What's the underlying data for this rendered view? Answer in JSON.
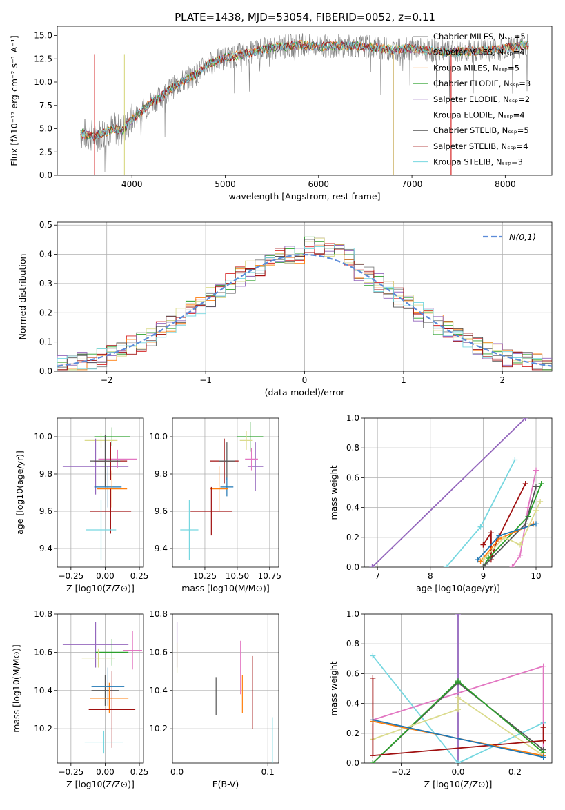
{
  "figure_title": "PLATE=1438, MJD=53054, FIBERID=0052, z=0.11",
  "legend_models": [
    {
      "name": "Chabrier MILES, N$_{SSP}$=5",
      "color": "#7f7f7f"
    },
    {
      "name": "Salpeter MILES, N$_{SSP}$=4",
      "color": "#d62728"
    },
    {
      "name": "Kroupa MILES, N$_{SSP}$=5",
      "color": "#ff7f0e"
    },
    {
      "name": "Chabrier ELODIE, N$_{SSP}$=3",
      "color": "#2ca02c"
    },
    {
      "name": "Salpeter ELODIE, N$_{SSP}$=2",
      "color": "#9467bd"
    },
    {
      "name": "Kroupa ELODIE, N$_{SSP}$=4",
      "color": "#dbdb8d"
    },
    {
      "name": "Chabrier STELIB, N$_{SSP}$=5",
      "color": "#555555"
    },
    {
      "name": "Salpeter STELIB, N$_{SSP}$=4",
      "color": "#a01010"
    },
    {
      "name": "Kroupa STELIB, N$_{SSP}$=3",
      "color": "#76d7e0"
    }
  ],
  "chart_data": [
    {
      "id": "spectrum",
      "type": "line",
      "title": "PLATE=1438, MJD=53054, FIBERID=0052, z=0.11",
      "xlabel": "wavelength [Angstrom, rest frame]",
      "ylabel": "Flux [fλ10⁻¹⁷ erg cm⁻² s⁻¹ A⁻¹]",
      "xlim": [
        3200,
        8500
      ],
      "ylim": [
        0,
        16
      ],
      "xticks": [
        "4000",
        "5000",
        "6000",
        "7000",
        "8000"
      ],
      "yticks": [
        "0.0",
        "2.5",
        "5.0",
        "7.5",
        "10.0",
        "12.5",
        "15.0"
      ],
      "continuum": [
        [
          3450,
          4.5
        ],
        [
          3600,
          4.2
        ],
        [
          3700,
          4.6
        ],
        [
          3800,
          5.0
        ],
        [
          3900,
          4.8
        ],
        [
          4000,
          6.0
        ],
        [
          4100,
          6.8
        ],
        [
          4200,
          7.8
        ],
        [
          4300,
          8.3
        ],
        [
          4400,
          9.2
        ],
        [
          4500,
          9.8
        ],
        [
          4600,
          10.4
        ],
        [
          4700,
          10.9
        ],
        [
          4800,
          11.8
        ],
        [
          4900,
          12.3
        ],
        [
          5000,
          12.6
        ],
        [
          5200,
          13.0
        ],
        [
          5400,
          13.5
        ],
        [
          5600,
          13.8
        ],
        [
          5800,
          14.0
        ],
        [
          6000,
          13.8
        ],
        [
          6200,
          13.9
        ],
        [
          6400,
          13.9
        ],
        [
          6600,
          13.7
        ],
        [
          6800,
          13.5
        ],
        [
          7000,
          13.6
        ],
        [
          7200,
          13.4
        ],
        [
          7400,
          13.2
        ],
        [
          7600,
          13.3
        ],
        [
          7800,
          13.4
        ],
        [
          8000,
          13.6
        ],
        [
          8250,
          14.0
        ]
      ]
    },
    {
      "id": "residual_hist",
      "type": "histogram",
      "xlabel": "(data-model)/error",
      "ylabel": "Normed distribution",
      "xlim": [
        -2.5,
        2.5
      ],
      "ylim": [
        0,
        0.51
      ],
      "xticks": [
        "−2",
        "−1",
        "0",
        "1",
        "2"
      ],
      "yticks": [
        "0.0",
        "0.1",
        "0.2",
        "0.3",
        "0.4",
        "0.5"
      ],
      "legend": "N(0,1)",
      "bin_width": 0.1
    },
    {
      "id": "age_vs_Z",
      "type": "errorbar",
      "xlabel": "Z [log10(Z/Z⊙)]",
      "ylabel": "age  [log10(age/yr)]",
      "xlim": [
        -0.35,
        0.28
      ],
      "ylim": [
        9.3,
        10.1
      ],
      "xticks": [
        "−0.25",
        "0.00",
        "0.25"
      ],
      "yticks": [
        "9.4",
        "9.6",
        "9.8",
        "10.0"
      ],
      "points": [
        {
          "x": 0.05,
          "xerr": 0.13,
          "y": 10.0,
          "yerr": 0.05,
          "c": "#2ca02c"
        },
        {
          "x": -0.03,
          "xerr": 0.12,
          "y": 9.98,
          "yerr": 0.04,
          "c": "#dbdb8d"
        },
        {
          "x": -0.07,
          "xerr": 0.24,
          "y": 9.84,
          "yerr": 0.15,
          "c": "#9467bd"
        },
        {
          "x": 0.09,
          "xerr": 0.14,
          "y": 9.88,
          "yerr": 0.05,
          "c": "#e377c2"
        },
        {
          "x": 0.04,
          "xerr": 0.12,
          "y": 9.87,
          "yerr": 0.1,
          "c": "#a01010"
        },
        {
          "x": 0.0,
          "xerr": 0.11,
          "y": 9.87,
          "yerr": 0.14,
          "c": "#555555"
        },
        {
          "x": 0.02,
          "xerr": 0.1,
          "y": 9.73,
          "yerr": 0.11,
          "c": "#1f77b4"
        },
        {
          "x": 0.05,
          "xerr": 0.11,
          "y": 9.72,
          "yerr": 0.1,
          "c": "#ff7f0e"
        },
        {
          "x": 0.04,
          "xerr": 0.15,
          "y": 9.6,
          "yerr": 0.12,
          "c": "#a01010"
        },
        {
          "x": -0.03,
          "xerr": 0.11,
          "y": 9.5,
          "yerr": 0.16,
          "c": "#76d7e0"
        }
      ]
    },
    {
      "id": "age_vs_mass",
      "type": "errorbar",
      "xlabel": "mass [log10(M/M⊙)]",
      "ylabel": "",
      "xlim": [
        10.0,
        10.82
      ],
      "ylim": [
        9.3,
        10.1
      ],
      "xticks": [
        "10.25",
        "10.50",
        "10.75"
      ],
      "yticks": [
        "9.4",
        "9.6",
        "9.8",
        "10.0"
      ],
      "points": [
        {
          "x": 10.6,
          "xerr": 0.1,
          "y": 10.0,
          "yerr": 0.08,
          "c": "#2ca02c"
        },
        {
          "x": 10.57,
          "xerr": 0.05,
          "y": 9.98,
          "yerr": 0.05,
          "c": "#dbdb8d"
        },
        {
          "x": 10.64,
          "xerr": 0.06,
          "y": 9.84,
          "yerr": 0.13,
          "c": "#9467bd"
        },
        {
          "x": 10.61,
          "xerr": 0.05,
          "y": 9.88,
          "yerr": 0.06,
          "c": "#e377c2"
        },
        {
          "x": 10.4,
          "xerr": 0.11,
          "y": 9.87,
          "yerr": 0.12,
          "c": "#a01010"
        },
        {
          "x": 10.42,
          "xerr": 0.06,
          "y": 9.87,
          "yerr": 0.1,
          "c": "#555555"
        },
        {
          "x": 10.42,
          "xerr": 0.05,
          "y": 9.73,
          "yerr": 0.05,
          "c": "#1f77b4"
        },
        {
          "x": 10.36,
          "xerr": 0.07,
          "y": 9.72,
          "yerr": 0.12,
          "c": "#ff7f0e"
        },
        {
          "x": 10.3,
          "xerr": 0.16,
          "y": 9.6,
          "yerr": 0.13,
          "c": "#a01010"
        },
        {
          "x": 10.13,
          "xerr": 0.07,
          "y": 9.5,
          "yerr": 0.16,
          "c": "#76d7e0"
        }
      ]
    },
    {
      "id": "weight_vs_age",
      "type": "line",
      "xlabel": "age  [log10(age/yr)]",
      "ylabel": "mass weight",
      "xlim": [
        6.75,
        10.3
      ],
      "ylim": [
        0,
        1.0
      ],
      "xticks": [
        "7",
        "8",
        "9",
        "10"
      ],
      "yticks": [
        "0.0",
        "0.2",
        "0.4",
        "0.6",
        "0.8",
        "1.0"
      ],
      "series": [
        {
          "c": "#9467bd",
          "pts": [
            [
              6.9,
              0.0
            ],
            [
              9.8,
              1.0
            ]
          ]
        },
        {
          "c": "#76d7e0",
          "pts": [
            [
              8.3,
              0.0
            ],
            [
              8.95,
              0.27
            ],
            [
              9.6,
              0.72
            ]
          ]
        },
        {
          "c": "#e377c2",
          "pts": [
            [
              9.55,
              0.0
            ],
            [
              9.7,
              0.08
            ],
            [
              9.85,
              0.4
            ],
            [
              10.0,
              0.65
            ]
          ]
        },
        {
          "c": "#a01010",
          "pts": [
            [
              9.0,
              0.15
            ],
            [
              9.15,
              0.23
            ],
            [
              9.15,
              0.05
            ],
            [
              9.25,
              0.17
            ],
            [
              9.8,
              0.56
            ]
          ]
        },
        {
          "c": "#2ca02c",
          "pts": [
            [
              9.0,
              0.0
            ],
            [
              9.1,
              0.06
            ],
            [
              9.85,
              0.34
            ],
            [
              10.1,
              0.56
            ]
          ]
        },
        {
          "c": "#555555",
          "pts": [
            [
              9.0,
              0.0
            ],
            [
              9.05,
              0.02
            ],
            [
              9.8,
              0.29
            ],
            [
              10.0,
              0.54
            ]
          ]
        },
        {
          "c": "#ff7f0e",
          "pts": [
            [
              8.95,
              0.04
            ],
            [
              9.3,
              0.19
            ],
            [
              9.95,
              0.29
            ]
          ]
        },
        {
          "c": "#1f77b4",
          "pts": [
            [
              8.9,
              0.05
            ],
            [
              9.3,
              0.21
            ],
            [
              10.0,
              0.29
            ]
          ]
        },
        {
          "c": "#dbdb8d",
          "pts": [
            [
              9.0,
              0.05
            ],
            [
              9.4,
              0.2
            ],
            [
              9.7,
              0.15
            ],
            [
              10.0,
              0.38
            ],
            [
              10.08,
              0.44
            ]
          ]
        }
      ]
    },
    {
      "id": "mass_vs_Z",
      "type": "errorbar",
      "xlabel": "Z [log10(Z/Z⊙)]",
      "ylabel": "mass [log10(M/M⊙)]",
      "xlim": [
        -0.35,
        0.28
      ],
      "ylim": [
        10.02,
        10.8
      ],
      "xticks": [
        "−0.25",
        "0.00",
        "0.25"
      ],
      "yticks": [
        "10.2",
        "10.4",
        "10.6",
        "10.8"
      ],
      "points": [
        {
          "x": -0.07,
          "xerr": 0.24,
          "y": 10.64,
          "yerr": 0.12,
          "c": "#9467bd"
        },
        {
          "x": 0.05,
          "xerr": 0.12,
          "y": 10.6,
          "yerr": 0.07,
          "c": "#2ca02c"
        },
        {
          "x": 0.2,
          "xerr": 0.07,
          "y": 10.61,
          "yerr": 0.1,
          "c": "#e377c2"
        },
        {
          "x": -0.05,
          "xerr": 0.12,
          "y": 10.57,
          "yerr": 0.05,
          "c": "#dbdb8d"
        },
        {
          "x": 0.0,
          "xerr": 0.1,
          "y": 10.4,
          "yerr": 0.08,
          "c": "#555555"
        },
        {
          "x": 0.03,
          "xerr": 0.14,
          "y": 10.36,
          "yerr": 0.08,
          "c": "#ff7f0e"
        },
        {
          "x": 0.05,
          "xerr": 0.17,
          "y": 10.3,
          "yerr": 0.2,
          "c": "#a01010"
        },
        {
          "x": 0.02,
          "xerr": 0.12,
          "y": 10.42,
          "yerr": 0.1,
          "c": "#1f77b4"
        },
        {
          "x": -0.01,
          "xerr": 0.14,
          "y": 10.13,
          "yerr": 0.06,
          "c": "#76d7e0"
        }
      ]
    },
    {
      "id": "mass_vs_ebv",
      "type": "errorbar",
      "xlabel": "E(B-V)",
      "ylabel": "",
      "xlim": [
        -0.005,
        0.112
      ],
      "ylim": [
        10.02,
        10.8
      ],
      "xticks": [
        "0.0",
        "0.1"
      ],
      "yticks": [
        "10.2",
        "10.4",
        "10.6",
        "10.8"
      ],
      "points": [
        {
          "x": 0.0,
          "xerr": 0,
          "y": 10.64,
          "yerr": 0.12,
          "c": "#9467bd"
        },
        {
          "x": 0.0,
          "xerr": 0,
          "y": 10.57,
          "yerr": 0.08,
          "c": "#dbdb8d"
        },
        {
          "x": 0.043,
          "xerr": 0,
          "y": 10.37,
          "yerr": 0.1,
          "c": "#555555"
        },
        {
          "x": 0.07,
          "xerr": 0,
          "y": 10.52,
          "yerr": 0.14,
          "c": "#e377c2"
        },
        {
          "x": 0.072,
          "xerr": 0,
          "y": 10.38,
          "yerr": 0.1,
          "c": "#ff7f0e"
        },
        {
          "x": 0.083,
          "xerr": 0,
          "y": 10.39,
          "yerr": 0.19,
          "c": "#a01010"
        },
        {
          "x": 0.105,
          "xerr": 0,
          "y": 10.13,
          "yerr": 0.13,
          "c": "#76d7e0"
        }
      ]
    },
    {
      "id": "weight_vs_Z",
      "type": "line",
      "xlabel": "Z [log10(Z/Z⊙)]",
      "ylabel": "mass weight",
      "xlim": [
        -0.33,
        0.33
      ],
      "ylim": [
        0,
        1.0
      ],
      "xticks": [
        "−0.2",
        "0.0",
        "0.2"
      ],
      "yticks": [
        "0.0",
        "0.2",
        "0.4",
        "0.6",
        "0.8",
        "1.0"
      ],
      "series": [
        {
          "c": "#9467bd",
          "pts": [
            [
              0.0,
              0.0
            ],
            [
              0.0,
              1.0
            ]
          ]
        },
        {
          "c": "#76d7e0",
          "pts": [
            [
              -0.3,
              0.72
            ],
            [
              0.0,
              0.0
            ],
            [
              0.3,
              0.27
            ]
          ]
        },
        {
          "c": "#e377c2",
          "pts": [
            [
              -0.3,
              0.29
            ],
            [
              0.3,
              0.65
            ],
            [
              0.3,
              0.05
            ]
          ]
        },
        {
          "c": "#555555",
          "pts": [
            [
              -0.3,
              0.0
            ],
            [
              0.0,
              0.54
            ],
            [
              0.3,
              0.09
            ]
          ]
        },
        {
          "c": "#2ca02c",
          "pts": [
            [
              -0.3,
              0.0
            ],
            [
              0.0,
              0.55
            ],
            [
              0.3,
              0.07
            ]
          ]
        },
        {
          "c": "#dbdb8d",
          "pts": [
            [
              -0.3,
              0.16
            ],
            [
              0.0,
              0.36
            ],
            [
              0.0,
              0.44
            ],
            [
              0.3,
              0.05
            ]
          ]
        },
        {
          "c": "#a01010",
          "pts": [
            [
              -0.3,
              0.57
            ],
            [
              -0.3,
              0.05
            ],
            [
              0.3,
              0.15
            ],
            [
              0.3,
              0.24
            ]
          ]
        },
        {
          "c": "#ff7f0e",
          "pts": [
            [
              -0.3,
              0.28
            ],
            [
              0.3,
              0.05
            ]
          ]
        },
        {
          "c": "#1f77b4",
          "pts": [
            [
              -0.3,
              0.29
            ],
            [
              0.3,
              0.04
            ]
          ]
        }
      ]
    }
  ]
}
